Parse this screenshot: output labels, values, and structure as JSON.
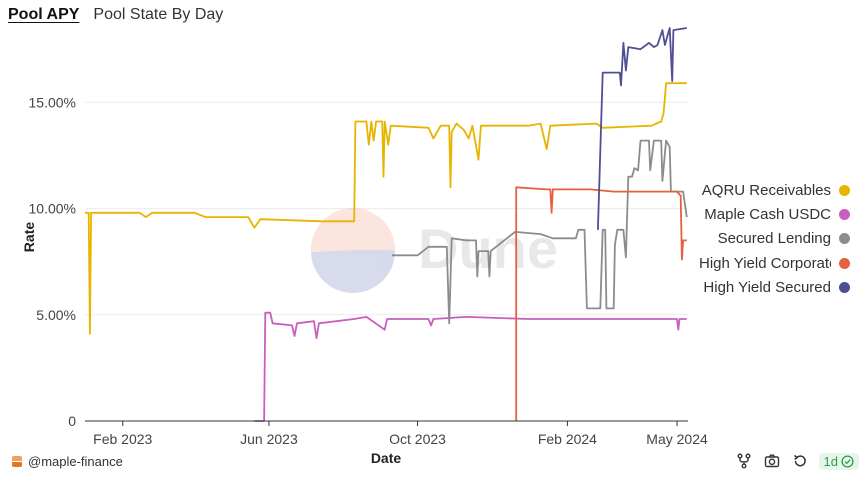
{
  "tabs": [
    {
      "label": "Pool APY",
      "active": true
    },
    {
      "label": "Pool State By Day",
      "active": false
    }
  ],
  "watermark": "Dune",
  "footer": {
    "user": "@maple-finance",
    "refresh_badge": "1d"
  },
  "toolbar_icons": [
    "fork-icon",
    "camera-icon",
    "refresh-icon"
  ],
  "chart_data": {
    "type": "line",
    "xlabel": "Date",
    "ylabel": "Rate",
    "x_ticks": [
      "Feb 2023",
      "Jun 2023",
      "Oct 2023",
      "Feb 2024",
      "May 2024"
    ],
    "x_tick_dates": [
      "2023-02-01",
      "2023-06-01",
      "2023-10-01",
      "2024-02-01",
      "2024-05-01"
    ],
    "x_range": [
      "2023-01-01",
      "2024-05-10"
    ],
    "y_ticks": [
      "0",
      "5.00%",
      "10.00%",
      "15.00%"
    ],
    "y_tick_values": [
      0,
      5,
      10,
      15
    ],
    "ylim": [
      0,
      18.5
    ],
    "grid": true,
    "legend_position": "right",
    "series": [
      {
        "name": "AQRU Receivables",
        "color": "#e8b400",
        "points": [
          [
            "2023-01-01",
            9.8
          ],
          [
            "2023-01-04",
            9.8
          ],
          [
            "2023-01-05",
            4.1
          ],
          [
            "2023-01-06",
            9.8
          ],
          [
            "2023-02-15",
            9.8
          ],
          [
            "2023-02-20",
            9.6
          ],
          [
            "2023-02-25",
            9.8
          ],
          [
            "2023-04-01",
            9.8
          ],
          [
            "2023-04-10",
            9.6
          ],
          [
            "2023-05-15",
            9.6
          ],
          [
            "2023-05-20",
            9.1
          ],
          [
            "2023-05-25",
            9.5
          ],
          [
            "2023-07-15",
            9.4
          ],
          [
            "2023-08-10",
            9.4
          ],
          [
            "2023-08-11",
            14.1
          ],
          [
            "2023-08-20",
            14.1
          ],
          [
            "2023-08-22",
            13.0
          ],
          [
            "2023-08-24",
            14.1
          ],
          [
            "2023-08-26",
            13.2
          ],
          [
            "2023-08-28",
            14.1
          ],
          [
            "2023-09-02",
            14.1
          ],
          [
            "2023-09-03",
            11.5
          ],
          [
            "2023-09-04",
            14.1
          ],
          [
            "2023-09-07",
            13.0
          ],
          [
            "2023-09-09",
            13.9
          ],
          [
            "2023-10-10",
            13.8
          ],
          [
            "2023-10-14",
            13.3
          ],
          [
            "2023-10-20",
            13.9
          ],
          [
            "2023-10-27",
            13.9
          ],
          [
            "2023-10-28",
            11.0
          ],
          [
            "2023-10-29",
            13.6
          ],
          [
            "2023-11-02",
            14.0
          ],
          [
            "2023-11-08",
            13.7
          ],
          [
            "2023-11-12",
            13.3
          ],
          [
            "2023-11-15",
            13.9
          ],
          [
            "2023-11-20",
            12.3
          ],
          [
            "2023-11-22",
            13.9
          ],
          [
            "2023-12-31",
            13.9
          ],
          [
            "2024-01-10",
            14.0
          ],
          [
            "2024-01-15",
            12.8
          ],
          [
            "2024-01-18",
            13.9
          ],
          [
            "2024-02-25",
            14.0
          ],
          [
            "2024-03-01",
            13.8
          ],
          [
            "2024-04-10",
            13.9
          ],
          [
            "2024-04-18",
            14.1
          ],
          [
            "2024-04-20",
            14.5
          ],
          [
            "2024-04-22",
            15.9
          ],
          [
            "2024-05-09",
            15.9
          ]
        ]
      },
      {
        "name": "Maple Cash USDC",
        "color": "#c85fbe",
        "points": [
          [
            "2023-05-20",
            0
          ],
          [
            "2023-05-28",
            0
          ],
          [
            "2023-05-29",
            5.1
          ],
          [
            "2023-06-02",
            5.1
          ],
          [
            "2023-06-04",
            4.6
          ],
          [
            "2023-06-20",
            4.5
          ],
          [
            "2023-06-22",
            4.0
          ],
          [
            "2023-06-24",
            4.6
          ],
          [
            "2023-07-08",
            4.7
          ],
          [
            "2023-07-10",
            3.9
          ],
          [
            "2023-07-12",
            4.6
          ],
          [
            "2023-08-10",
            4.8
          ],
          [
            "2023-08-20",
            4.9
          ],
          [
            "2023-09-04",
            4.3
          ],
          [
            "2023-09-06",
            4.8
          ],
          [
            "2023-10-10",
            4.8
          ],
          [
            "2023-10-12",
            4.5
          ],
          [
            "2023-10-14",
            4.8
          ],
          [
            "2023-11-10",
            4.9
          ],
          [
            "2023-12-31",
            4.8
          ],
          [
            "2024-03-01",
            4.8
          ],
          [
            "2024-05-01",
            4.8
          ],
          [
            "2024-05-02",
            4.3
          ],
          [
            "2024-05-03",
            4.8
          ],
          [
            "2024-05-09",
            4.8
          ]
        ]
      },
      {
        "name": "Secured Lending",
        "color": "#8c8c8c",
        "points": [
          [
            "2023-09-10",
            7.8
          ],
          [
            "2023-10-01",
            7.8
          ],
          [
            "2023-10-10",
            8.2
          ],
          [
            "2023-10-25",
            8.2
          ],
          [
            "2023-10-27",
            4.6
          ],
          [
            "2023-10-29",
            8.6
          ],
          [
            "2023-11-10",
            8.5
          ],
          [
            "2023-11-18",
            8.5
          ],
          [
            "2023-11-19",
            6.8
          ],
          [
            "2023-11-20",
            8.0
          ],
          [
            "2023-11-28",
            8.0
          ],
          [
            "2023-11-29",
            6.8
          ],
          [
            "2023-11-30",
            8.0
          ],
          [
            "2023-12-20",
            8.9
          ],
          [
            "2024-01-10",
            8.8
          ],
          [
            "2024-01-20",
            8.6
          ],
          [
            "2024-02-08",
            8.6
          ],
          [
            "2024-02-10",
            9.0
          ],
          [
            "2024-02-15",
            9.0
          ],
          [
            "2024-02-17",
            5.3
          ],
          [
            "2024-02-28",
            5.3
          ],
          [
            "2024-03-01",
            9.0
          ],
          [
            "2024-03-03",
            9.0
          ],
          [
            "2024-03-04",
            5.3
          ],
          [
            "2024-03-10",
            5.3
          ],
          [
            "2024-03-11",
            8.3
          ],
          [
            "2024-03-13",
            9.0
          ],
          [
            "2024-03-18",
            9.0
          ],
          [
            "2024-03-20",
            7.7
          ],
          [
            "2024-03-22",
            11.5
          ],
          [
            "2024-03-25",
            11.5
          ],
          [
            "2024-03-27",
            11.9
          ],
          [
            "2024-03-30",
            11.8
          ],
          [
            "2024-04-01",
            13.2
          ],
          [
            "2024-04-08",
            13.2
          ],
          [
            "2024-04-09",
            11.8
          ],
          [
            "2024-04-12",
            13.2
          ],
          [
            "2024-04-18",
            13.2
          ],
          [
            "2024-04-19",
            11.3
          ],
          [
            "2024-04-22",
            13.2
          ],
          [
            "2024-04-25",
            12.9
          ],
          [
            "2024-04-26",
            10.8
          ],
          [
            "2024-05-06",
            10.8
          ],
          [
            "2024-05-09",
            9.6
          ]
        ]
      },
      {
        "name": "High Yield Corporate",
        "color": "#e4603f",
        "points": [
          [
            "2023-12-21",
            0
          ],
          [
            "2023-12-21",
            11.0
          ],
          [
            "2024-01-15",
            10.9
          ],
          [
            "2024-01-18",
            10.9
          ],
          [
            "2024-01-19",
            9.8
          ],
          [
            "2024-01-20",
            10.9
          ],
          [
            "2024-02-20",
            10.9
          ],
          [
            "2024-03-10",
            10.8
          ],
          [
            "2024-04-10",
            10.8
          ],
          [
            "2024-05-01",
            10.8
          ],
          [
            "2024-05-04",
            10.6
          ],
          [
            "2024-05-05",
            7.6
          ],
          [
            "2024-05-06",
            8.5
          ],
          [
            "2024-05-09",
            8.5
          ]
        ]
      },
      {
        "name": "High Yield Secured",
        "color": "#4f4f97",
        "points": [
          [
            "2024-02-26",
            9.0
          ],
          [
            "2024-03-01",
            16.4
          ],
          [
            "2024-03-15",
            16.4
          ],
          [
            "2024-03-16",
            15.8
          ],
          [
            "2024-03-18",
            17.8
          ],
          [
            "2024-03-20",
            16.5
          ],
          [
            "2024-03-22",
            17.6
          ],
          [
            "2024-04-01",
            17.5
          ],
          [
            "2024-04-08",
            17.8
          ],
          [
            "2024-04-12",
            17.6
          ],
          [
            "2024-04-15",
            17.7
          ],
          [
            "2024-04-19",
            18.4
          ],
          [
            "2024-04-21",
            17.7
          ],
          [
            "2024-04-25",
            18.5
          ],
          [
            "2024-04-27",
            16.0
          ],
          [
            "2024-04-28",
            18.4
          ],
          [
            "2024-05-09",
            18.5
          ]
        ]
      }
    ]
  }
}
